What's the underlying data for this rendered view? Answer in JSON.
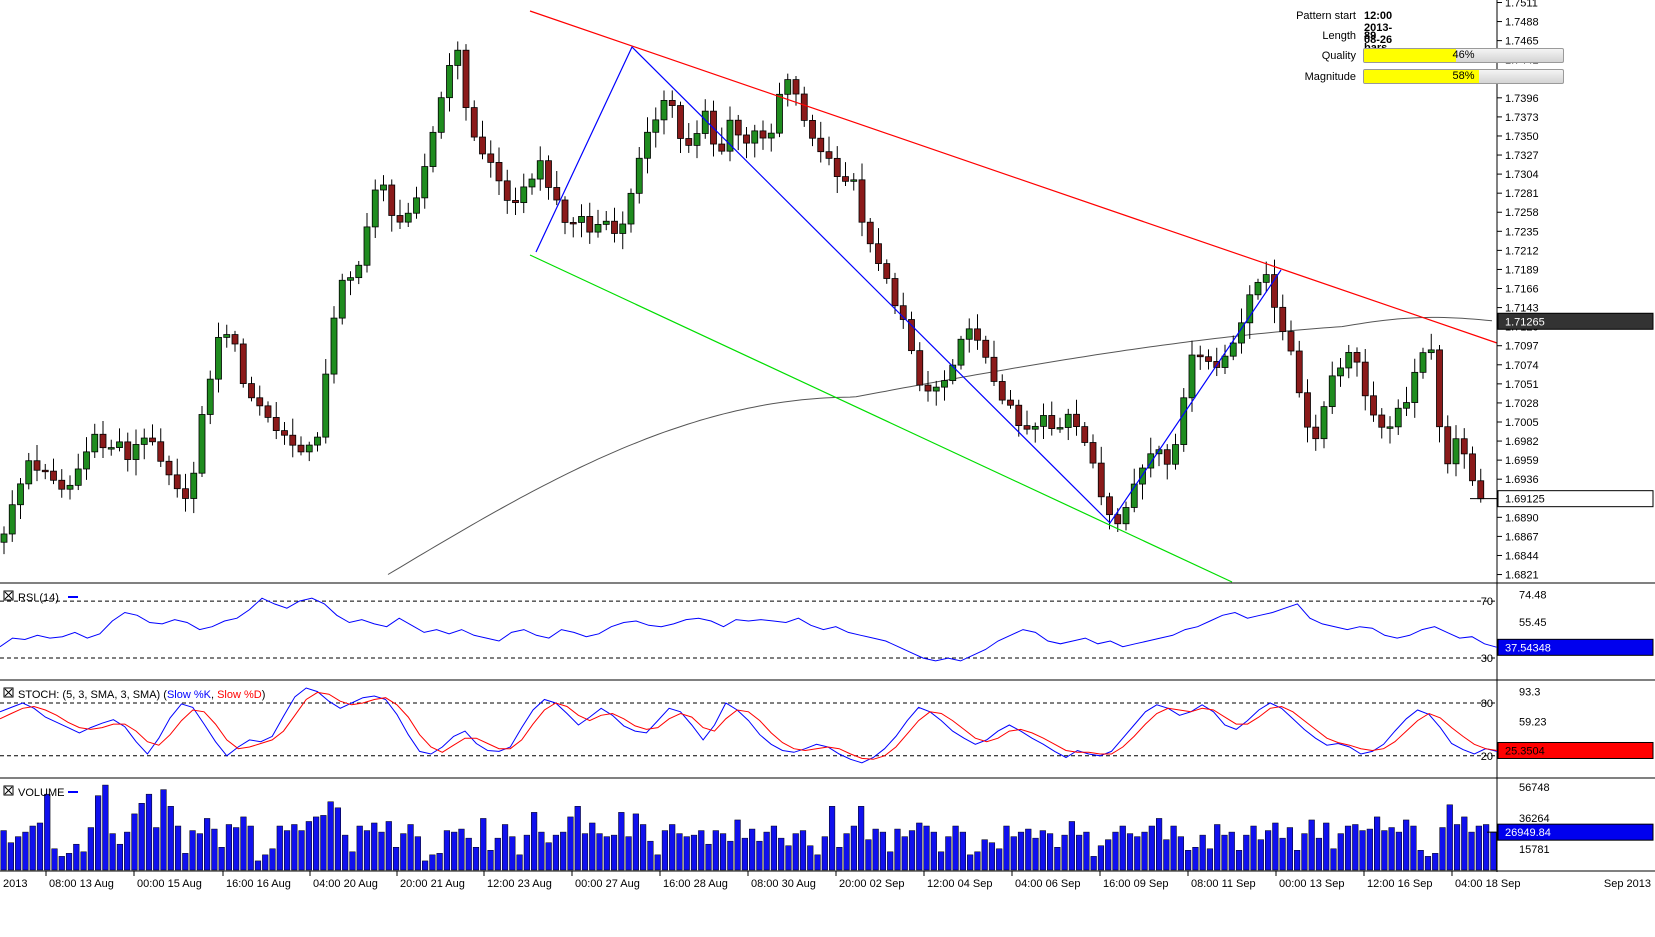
{
  "pattern_info": {
    "pattern_start_label": "Pattern start",
    "pattern_start_value": "12:00 2013-08-26",
    "length_label": "Length",
    "length_value": "89 bars",
    "quality_label": "Quality",
    "quality_value": "46%",
    "quality_fraction": 0.46,
    "magnitude_label": "Magnitude",
    "magnitude_value": "58%",
    "magnitude_fraction": 0.58
  },
  "chart_data": [
    {
      "type": "candlestick",
      "price_ticks": [
        "1.7511",
        "1.7488",
        "1.7465",
        "1.7442",
        "1.7419",
        "1.7396",
        "1.7373",
        "1.7350",
        "1.7327",
        "1.7304",
        "1.7281",
        "1.7258",
        "1.7235",
        "1.7212",
        "1.7189",
        "1.7166",
        "1.7143",
        "1.7120",
        "1.7097",
        "1.7074",
        "1.7051",
        "1.7028",
        "1.7005",
        "1.6982",
        "1.6959",
        "1.6936",
        "1.6913",
        "1.6890",
        "1.6867",
        "1.6844",
        "1.6821"
      ],
      "ylim": [
        1.6812,
        1.7514
      ],
      "current_price_label": "1.69125",
      "current_price": 1.69125,
      "ma_value_label": "1.71265",
      "ma_value": 1.71265,
      "x_labels": [
        "2013",
        "08:00 13 Aug",
        "00:00 15 Aug",
        "16:00 16 Aug",
        "04:00 20 Aug",
        "20:00 21 Aug",
        "12:00 23 Aug",
        "00:00 27 Aug",
        "16:00 28 Aug",
        "08:00 30 Aug",
        "20:00 02 Sep",
        "12:00 04 Sep",
        "04:00 06 Sep",
        "16:00 09 Sep",
        "08:00 11 Sep",
        "00:00 13 Sep",
        "12:00 16 Sep",
        "04:00 18 Sep",
        "Sep 2013"
      ],
      "close_path": [
        1.6875,
        1.6915,
        1.696,
        1.6945,
        1.693,
        1.692,
        1.695,
        1.6995,
        1.697,
        1.698,
        1.696,
        1.6995,
        1.697,
        1.694,
        1.6915,
        1.6925,
        1.7025,
        1.71,
        1.712,
        1.706,
        1.703,
        1.7015,
        1.699,
        1.6985,
        1.696,
        1.6985,
        1.71,
        1.717,
        1.718,
        1.724,
        1.73,
        1.726,
        1.724,
        1.727,
        1.734,
        1.74,
        1.747,
        1.738,
        1.733,
        1.7315,
        1.728,
        1.726,
        1.73,
        1.732,
        1.727,
        1.724,
        1.7255,
        1.723,
        1.726,
        1.722,
        1.728,
        1.733,
        1.737,
        1.741,
        1.735,
        1.733,
        1.738,
        1.732,
        1.737,
        1.734,
        1.736,
        1.733,
        1.74,
        1.742,
        1.736,
        1.734,
        1.732,
        1.73,
        1.729,
        1.722,
        1.719,
        1.716,
        1.712,
        1.705,
        1.704,
        1.705,
        1.707,
        1.713,
        1.709,
        1.706,
        1.703,
        1.7,
        1.699,
        1.701,
        1.699,
        1.702,
        1.7,
        1.695,
        1.69,
        1.689,
        1.692,
        1.695,
        1.698,
        1.696,
        1.7,
        1.71,
        1.708,
        1.707,
        1.71,
        1.713,
        1.717,
        1.719,
        1.711,
        1.709,
        1.7,
        1.699,
        1.706,
        1.708,
        1.709,
        1.702,
        1.699,
        1.701,
        1.702,
        1.709,
        1.71,
        1.695,
        1.698,
        1.695,
        1.6912
      ]
    },
    {
      "type": "line",
      "title": "RSI (14)",
      "levels": [
        "70",
        "30"
      ],
      "ticks": [
        "74.48",
        "55.45"
      ],
      "ylim": [
        16.0,
        82.0
      ],
      "current_label": "37.54348",
      "values": [
        38,
        44,
        43,
        46,
        44,
        45,
        48,
        44,
        47,
        56,
        62,
        60,
        55,
        54,
        57,
        55,
        50,
        52,
        56,
        58,
        64,
        72,
        68,
        65,
        70,
        72,
        68,
        60,
        55,
        57,
        54,
        52,
        58,
        53,
        48,
        50,
        47,
        50,
        46,
        44,
        42,
        48,
        50,
        46,
        44,
        50,
        48,
        45,
        47,
        52,
        55,
        56,
        53,
        52,
        54,
        57,
        58,
        56,
        52,
        57,
        56,
        57,
        56,
        55,
        58,
        53,
        50,
        52,
        48,
        46,
        44,
        42,
        38,
        34,
        30,
        28,
        30,
        28,
        32,
        36,
        42,
        46,
        50,
        48,
        42,
        40,
        42,
        44,
        40,
        42,
        38,
        40,
        42,
        44,
        46,
        50,
        52,
        56,
        60,
        62,
        58,
        60,
        62,
        65,
        68,
        58,
        54,
        52,
        50,
        52,
        51,
        46,
        44,
        46,
        50,
        52,
        48,
        44,
        45,
        40,
        37.54
      ]
    },
    {
      "type": "line",
      "title_prefix": "STOCH: (5, 3, SMA, 3, SMA)",
      "series": [
        {
          "name": "Slow %K",
          "color": "#0000ff",
          "values": [
            70,
            75,
            80,
            74,
            64,
            58,
            52,
            46,
            52,
            57,
            61,
            53,
            36,
            22,
            40,
            63,
            79,
            75,
            56,
            36,
            20,
            30,
            38,
            36,
            42,
            65,
            87,
            97,
            93,
            82,
            74,
            80,
            86,
            88,
            84,
            67,
            44,
            25,
            22,
            30,
            42,
            48,
            34,
            26,
            25,
            30,
            52,
            72,
            84,
            80,
            68,
            55,
            64,
            74,
            66,
            54,
            48,
            46,
            60,
            74,
            70,
            55,
            38,
            55,
            80,
            72,
            60,
            44,
            33,
            26,
            24,
            28,
            33,
            30,
            22,
            16,
            12,
            18,
            28,
            42,
            60,
            75,
            70,
            60,
            48,
            40,
            33,
            38,
            48,
            55,
            48,
            40,
            33,
            25,
            18,
            26,
            22,
            20,
            25,
            40,
            55,
            70,
            78,
            74,
            66,
            70,
            78,
            70,
            55,
            50,
            60,
            72,
            80,
            74,
            62,
            50,
            40,
            32,
            34,
            30,
            22,
            25,
            33,
            48,
            62,
            72,
            67,
            52,
            34,
            27,
            22,
            28,
            25
          ]
        },
        {
          "name": "Slow %D",
          "color": "#ff0000",
          "values": [
            62,
            68,
            74,
            76,
            72,
            66,
            58,
            52,
            50,
            52,
            56,
            56,
            48,
            36,
            32,
            44,
            60,
            72,
            70,
            56,
            38,
            28,
            30,
            34,
            38,
            48,
            66,
            84,
            92,
            90,
            82,
            78,
            80,
            84,
            86,
            78,
            64,
            44,
            30,
            24,
            32,
            40,
            40,
            34,
            28,
            28,
            38,
            56,
            72,
            80,
            76,
            66,
            60,
            66,
            68,
            62,
            54,
            50,
            52,
            62,
            68,
            64,
            52,
            48,
            62,
            72,
            70,
            60,
            46,
            35,
            28,
            26,
            28,
            30,
            28,
            22,
            17,
            16,
            20,
            30,
            45,
            60,
            70,
            68,
            60,
            50,
            40,
            36,
            40,
            48,
            50,
            46,
            40,
            33,
            26,
            24,
            24,
            22,
            22,
            30,
            42,
            56,
            68,
            74,
            72,
            70,
            74,
            72,
            64,
            56,
            56,
            64,
            74,
            76,
            70,
            60,
            50,
            40,
            35,
            32,
            28,
            26,
            28,
            36,
            48,
            60,
            68,
            63,
            52,
            42,
            33,
            28,
            26
          ]
        }
      ],
      "levels": [
        "80",
        "20"
      ],
      "ticks": [
        "93.3",
        "59.23"
      ],
      "ylim": [
        -3.0,
        105.0
      ],
      "current_label": "25.3504"
    },
    {
      "type": "bar",
      "title": "VOLUME",
      "ticks": [
        "56748",
        "36264",
        "15781"
      ],
      "ylim": [
        2000,
        62000
      ],
      "current_label": "26949.84",
      "values": [
        28000,
        20000,
        24000,
        27000,
        31000,
        33000,
        52000,
        16000,
        11000,
        13000,
        19000,
        14000,
        30000,
        51000,
        58000,
        26000,
        19000,
        27000,
        39000,
        46000,
        52000,
        30000,
        55000,
        44000,
        31000,
        13000,
        28000,
        26000,
        36000,
        29000,
        17000,
        32000,
        30000,
        37000,
        31000,
        8000,
        12000,
        16000,
        31000,
        28000,
        32000,
        28000,
        34000,
        37000,
        38000,
        47000,
        43000,
        25000,
        14000,
        31000,
        28000,
        33000,
        27000,
        34000,
        17000,
        26000,
        32000,
        24000,
        8000,
        12000,
        13000,
        28000,
        27000,
        29000,
        23000,
        17000,
        36000,
        15000,
        23000,
        32000,
        24000,
        12000,
        25000,
        40000,
        27000,
        20000,
        25000,
        27000,
        37000,
        44000,
        26000,
        33000,
        26000,
        24000,
        25000,
        40000,
        24000,
        39000,
        32000,
        21000,
        12000,
        28000,
        32000,
        26000,
        24000,
        25000,
        28000,
        19000,
        28000,
        26000,
        21000,
        35000,
        23000,
        29000,
        21000,
        27000,
        31000,
        23000,
        18000,
        26000,
        28000,
        18000,
        12000,
        24000,
        44000,
        17000,
        26000,
        31000,
        44000,
        22000,
        29000,
        27000,
        14000,
        29000,
        24000,
        28000,
        33000,
        31000,
        27000,
        14000,
        24000,
        31000,
        27000,
        12000,
        14000,
        22000,
        20000,
        16000,
        31000,
        24000,
        27000,
        29000,
        23000,
        28000,
        26000,
        17000,
        25000,
        34000,
        25000,
        27000,
        11000,
        18000,
        22000,
        27000,
        31000,
        26000,
        24000,
        27000,
        31000,
        36000,
        22000,
        31000,
        24000,
        15000,
        17000,
        25000,
        16000,
        32000,
        25000,
        27000,
        15000,
        25000,
        31000,
        22000,
        28000,
        33000,
        23000,
        30000,
        15000,
        26000,
        35000,
        23000,
        33000,
        16000,
        26000,
        31000,
        32000,
        28000,
        29000,
        37000,
        28000,
        30000,
        27000,
        35000,
        31000,
        15000,
        11000,
        13000,
        30000,
        45000,
        32000,
        37000,
        27000,
        31000,
        32000,
        27000
      ]
    }
  ]
}
